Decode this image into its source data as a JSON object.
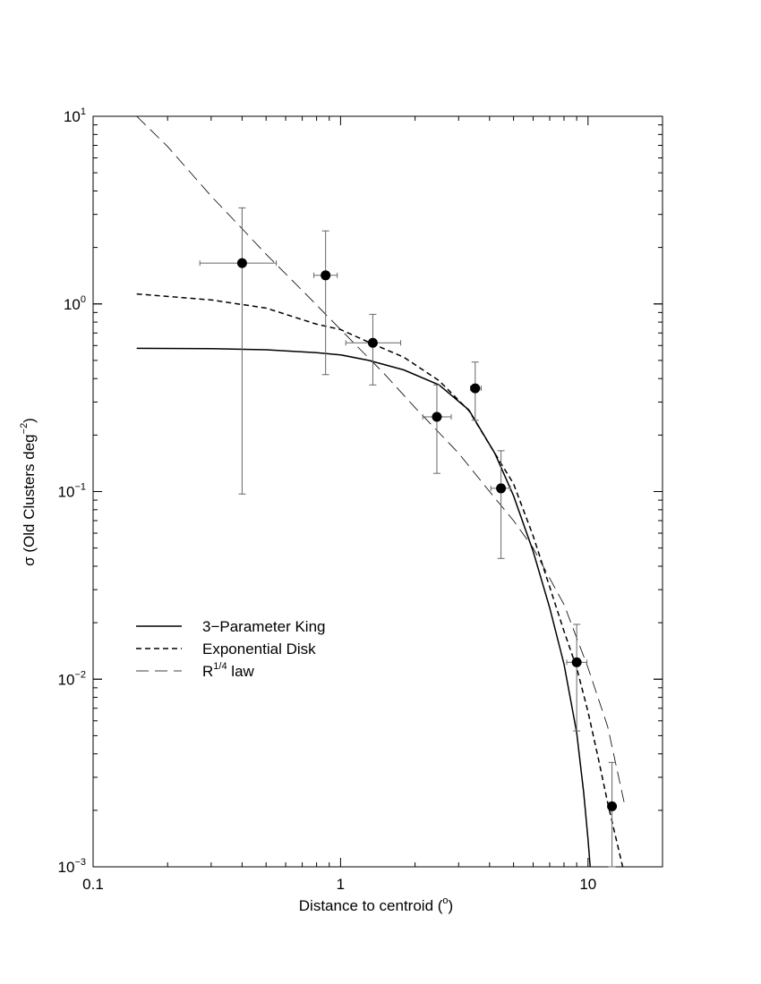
{
  "chart_data": {
    "type": "scatter",
    "title": "",
    "xlabel": "Distance to  centroid  (",
    "xlabel_unit": "o",
    "xlabel_close": ")",
    "ylabel_prefix": "σ (Old Clusters deg",
    "ylabel_exp": "−2",
    "ylabel_suffix": ")",
    "x_scale": "log",
    "y_scale": "log",
    "xlim": [
      0.1,
      20
    ],
    "ylim": [
      0.001,
      10
    ],
    "grid": false,
    "legend_position": "lower-left",
    "x_ticks": [
      {
        "value": 0.1,
        "label": "0.1"
      },
      {
        "value": 1,
        "label": "1"
      },
      {
        "value": 10,
        "label": "10"
      }
    ],
    "y_ticks": [
      {
        "value": 10,
        "base": "10",
        "exp": "1"
      },
      {
        "value": 1,
        "base": "10",
        "exp": "0"
      },
      {
        "value": 0.1,
        "base": "10",
        "exp": "−1"
      },
      {
        "value": 0.01,
        "base": "10",
        "exp": "−2"
      },
      {
        "value": 0.001,
        "base": "10",
        "exp": "−3"
      }
    ],
    "points": {
      "name": "",
      "data": [
        {
          "x": 0.4,
          "y": 1.65,
          "xerr": [
            0.27,
            0.55
          ],
          "yerr": [
            0.097,
            3.25
          ]
        },
        {
          "x": 0.87,
          "y": 1.42,
          "xerr": [
            0.78,
            0.97
          ],
          "yerr": [
            0.42,
            2.45
          ]
        },
        {
          "x": 1.35,
          "y": 0.62,
          "xerr": [
            1.05,
            1.75
          ],
          "yerr": [
            0.37,
            0.88
          ]
        },
        {
          "x": 2.45,
          "y": 0.25,
          "xerr": [
            2.15,
            2.8
          ],
          "yerr": [
            0.125,
            0.37
          ]
        },
        {
          "x": 3.5,
          "y": 0.355,
          "xerr": [
            3.35,
            3.7
          ],
          "yerr": [
            0.24,
            0.49
          ]
        },
        {
          "x": 4.45,
          "y": 0.104,
          "xerr": [
            4.05,
            4.85
          ],
          "yerr": [
            0.044,
            0.165
          ]
        },
        {
          "x": 9.0,
          "y": 0.0123,
          "xerr": [
            8.2,
            9.9
          ],
          "yerr": [
            0.0053,
            0.0196
          ]
        },
        {
          "x": 12.5,
          "y": 0.0021,
          "xerr": [
            12.1,
            12.9
          ],
          "yerr": [
            0.001,
            0.0036
          ]
        }
      ]
    },
    "series": [
      {
        "name": "3−Parameter King",
        "style": "solid",
        "x": [
          0.15,
          0.3,
          0.5,
          0.8,
          1.0,
          1.3,
          1.8,
          2.5,
          3.3,
          4.2,
          5.0,
          6.0,
          7.0,
          8.0,
          9.0,
          9.6,
          10.0,
          10.2
        ],
        "y": [
          0.58,
          0.578,
          0.57,
          0.55,
          0.535,
          0.5,
          0.445,
          0.37,
          0.272,
          0.16,
          0.095,
          0.048,
          0.024,
          0.012,
          0.0052,
          0.0025,
          0.0014,
          0.001
        ]
      },
      {
        "name": "Exponential Disk",
        "style": "dash",
        "x": [
          0.15,
          0.3,
          0.5,
          0.8,
          1.0,
          1.3,
          1.8,
          2.5,
          3.3,
          4.2,
          5.0,
          6.0,
          7.0,
          8.0,
          9.0,
          10.0,
          11.0,
          12.0,
          13.0,
          13.8
        ],
        "y": [
          1.13,
          1.05,
          0.95,
          0.78,
          0.73,
          0.625,
          0.52,
          0.39,
          0.27,
          0.16,
          0.11,
          0.058,
          0.031,
          0.018,
          0.0115,
          0.0067,
          0.0038,
          0.0022,
          0.0014,
          0.001
        ]
      },
      {
        "name": "law",
        "name_prefix": "R",
        "name_exp": "1/4",
        "style": "longdash",
        "x": [
          0.15,
          0.2,
          0.3,
          0.4,
          0.5,
          0.7,
          1.0,
          1.5,
          2.0,
          3.0,
          4.0,
          5.0,
          6.0,
          8.0,
          10.0,
          12.0,
          14.0
        ],
        "y": [
          10.0,
          6.9,
          3.75,
          2.52,
          1.84,
          1.18,
          0.73,
          0.425,
          0.28,
          0.16,
          0.1,
          0.07,
          0.05,
          0.025,
          0.0115,
          0.0056,
          0.0022
        ]
      }
    ]
  }
}
